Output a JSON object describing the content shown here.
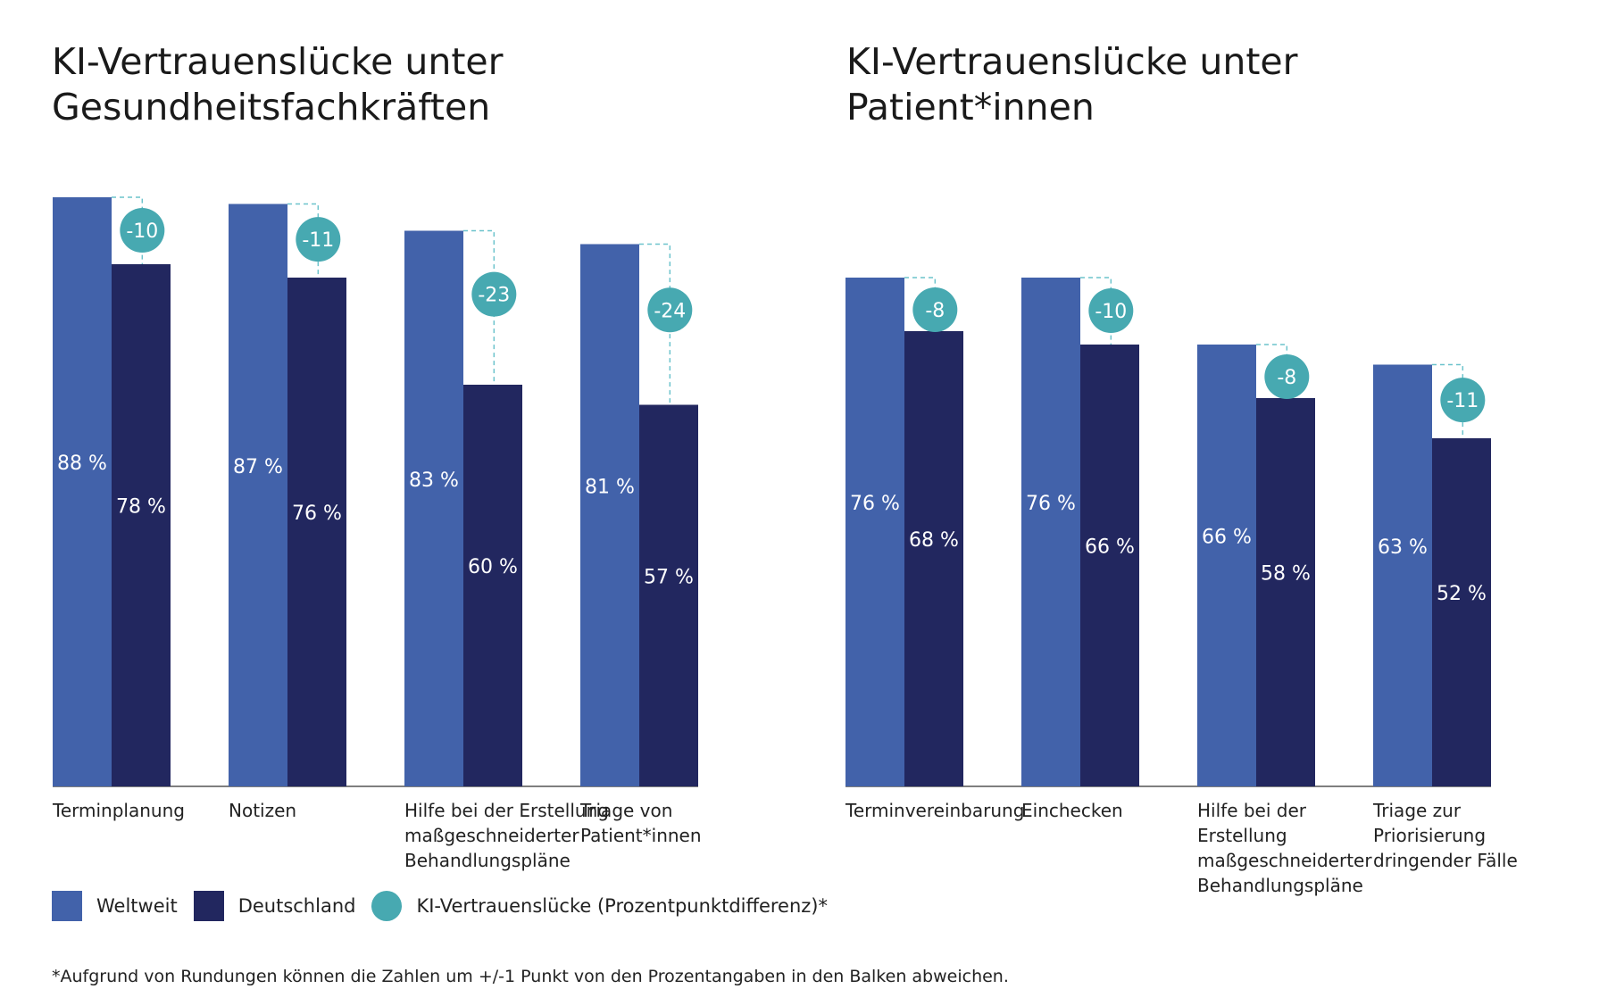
{
  "legend": {
    "worldwide": "Weltweit",
    "germany": "Deutschland",
    "gap": "KI-Vertrauenslücke (Prozentpunktdifferenz)*"
  },
  "footnote": "*Aufgrund von Rundungen können die Zahlen um +/-1 Punkt von den Prozentangaben in den Balken abweichen.",
  "colors": {
    "worldwide": "#4262aa",
    "germany": "#22275f",
    "gap": "#47a9b1",
    "dash": "#6cc3cc"
  },
  "chart_data": [
    {
      "type": "bar",
      "title": "KI-Vertrauenslücke unter Gesundheitsfachkräften",
      "title_lines": [
        "KI-Vertrauenslücke unter",
        "Gesundheitsfachkräften"
      ],
      "categories": [
        [
          "Terminplanung"
        ],
        [
          "Notizen"
        ],
        [
          "Hilfe bei der Erstellung",
          "maßgeschneiderter",
          "Behandlungspläne"
        ],
        [
          "Triage von",
          "Patient*innen"
        ]
      ],
      "series": [
        {
          "name": "Weltweit",
          "values": [
            88,
            87,
            83,
            81
          ],
          "labels": [
            "88 %",
            "87 %",
            "83 %",
            "81 %"
          ]
        },
        {
          "name": "Deutschland",
          "values": [
            78,
            76,
            60,
            57
          ],
          "labels": [
            "78 %",
            "76 %",
            "60 %",
            "57 %"
          ]
        }
      ],
      "gap": [
        -10,
        -11,
        -23,
        -24
      ],
      "gap_labels": [
        "-10",
        "-11",
        "-23",
        "-24"
      ],
      "ylim": [
        0,
        100
      ],
      "xlabel": "",
      "ylabel": "",
      "grid": false
    },
    {
      "type": "bar",
      "title": "KI-Vertrauenslücke unter Patient*innen",
      "title_lines": [
        "KI-Vertrauenslücke unter",
        "Patient*innen"
      ],
      "categories": [
        [
          "Terminvereinbarung"
        ],
        [
          "Einchecken"
        ],
        [
          "Hilfe bei der",
          "Erstellung",
          "maßgeschneiderter",
          "Behandlungspläne"
        ],
        [
          "Triage zur",
          "Priorisierung",
          "dringender Fälle"
        ]
      ],
      "series": [
        {
          "name": "Weltweit",
          "values": [
            76,
            76,
            66,
            63
          ],
          "labels": [
            "76 %",
            "76 %",
            "66 %",
            "63 %"
          ]
        },
        {
          "name": "Deutschland",
          "values": [
            68,
            66,
            58,
            52
          ],
          "labels": [
            "68 %",
            "66 %",
            "58 %",
            "52 %"
          ]
        }
      ],
      "gap": [
        -8,
        -10,
        -8,
        -11
      ],
      "gap_labels": [
        "-8",
        "-10",
        "-8",
        "-11"
      ],
      "ylim": [
        0,
        100
      ],
      "xlabel": "",
      "ylabel": "",
      "grid": false
    }
  ]
}
